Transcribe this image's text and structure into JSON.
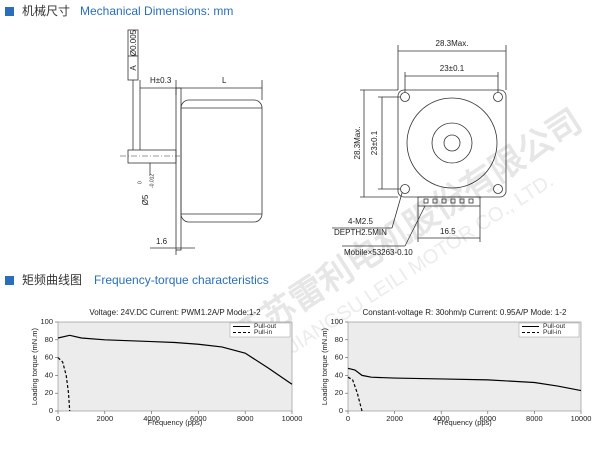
{
  "header": {
    "title_cn": "机械尺寸",
    "title_en": "Mechanical Dimensions: mm"
  },
  "drawing": {
    "labels": [
      "Ø0.005",
      "A",
      "H±0.3",
      "L",
      "Ø5",
      "0",
      "-0.012",
      "1.6",
      "28.3Max.",
      "23±0.1",
      "28.3Max.",
      "23±0.1",
      "4-M2.5",
      "DEPTH2.5MIN",
      "16.5",
      "Mobile×53263-0.10"
    ],
    "watermark": "江苏雷利电机股份有限公司",
    "watermark_en": "JIANGSU LEILI MOTOR CO., LTD."
  },
  "section2": {
    "title_cn": "矩频曲线图",
    "title_en": "Frequency-torque characteristics"
  },
  "chart_data": [
    {
      "type": "line",
      "title": "Voltage: 24V.DC Current: PWM1.2A/P Mode:1-2",
      "x_label": "Frequency (pps)",
      "y_label": "Loading torque (mN.m)",
      "xlim": [
        0,
        10000
      ],
      "ylim": [
        0,
        100
      ],
      "xticks": [
        0,
        2000,
        4000,
        6000,
        8000,
        10000
      ],
      "yticks": [
        0,
        20,
        40,
        60,
        80,
        100
      ],
      "legend": "upper right",
      "series": [
        {
          "name": "Pull-out",
          "color": "#000000",
          "dash": false,
          "x": [
            0,
            500,
            1000,
            2000,
            3000,
            4000,
            5000,
            6000,
            7000,
            8000,
            9000,
            10000
          ],
          "values": [
            82,
            85,
            82,
            80,
            79,
            78,
            77,
            75,
            72,
            65,
            48,
            30
          ]
        },
        {
          "name": "Pull-in",
          "color": "#000000",
          "dash": true,
          "x": [
            0,
            200,
            350,
            450,
            500
          ],
          "values": [
            60,
            55,
            40,
            20,
            0
          ]
        }
      ]
    },
    {
      "type": "line",
      "title": "Constant-voltage R: 30ohm/p Current: 0.95A/P Mode: 1-2",
      "x_label": "Frequency (pps)",
      "y_label": "Loading torque (mN.m)",
      "xlim": [
        0,
        10000
      ],
      "ylim": [
        0,
        100
      ],
      "xticks": [
        0,
        2000,
        4000,
        6000,
        8000,
        10000
      ],
      "yticks": [
        0,
        20,
        40,
        60,
        80,
        100
      ],
      "legend": "upper right",
      "series": [
        {
          "name": "Pull-out",
          "color": "#000000",
          "dash": false,
          "x": [
            0,
            300,
            600,
            1000,
            2000,
            4000,
            6000,
            8000,
            9000,
            10000
          ],
          "values": [
            48,
            46,
            40,
            38,
            37,
            36,
            35,
            32,
            28,
            23
          ]
        },
        {
          "name": "Pull-in",
          "color": "#000000",
          "dash": true,
          "x": [
            0,
            200,
            400,
            550,
            600
          ],
          "values": [
            38,
            35,
            20,
            5,
            0
          ]
        }
      ]
    }
  ]
}
